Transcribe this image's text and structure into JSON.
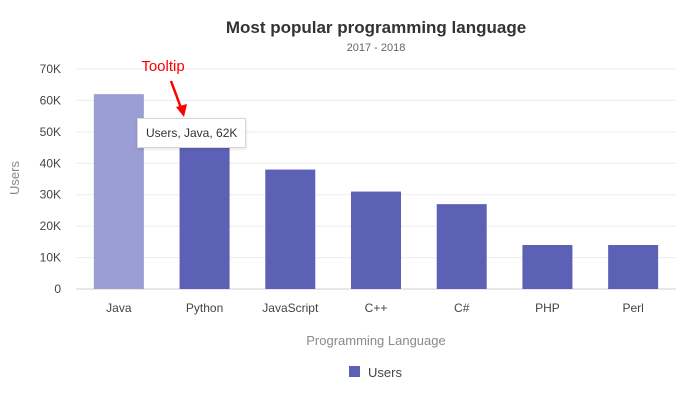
{
  "chart_data": {
    "type": "bar",
    "title": "Most popular programming language",
    "subtitle": "2017 - 2018",
    "xlabel": "Programming Language",
    "ylabel": "Users",
    "categories": [
      "Java",
      "Python",
      "JavaScript",
      "C++",
      "C#",
      "PHP",
      "Perl"
    ],
    "series": [
      {
        "name": "Users",
        "values": [
          62000,
          45000,
          38000,
          31000,
          27000,
          14000,
          14000
        ]
      }
    ],
    "ylim": [
      0,
      70000
    ],
    "yticks": [
      "0",
      "10K",
      "20K",
      "30K",
      "40K",
      "50K",
      "60K",
      "70K"
    ],
    "grid": true,
    "legend": {
      "position": "bottom",
      "entries": [
        "Users"
      ]
    },
    "highlighted_index": 0,
    "colors": {
      "bar": "#5c61b5",
      "bar_highlight": "#9a9ed4",
      "annotation": "#ff0000"
    }
  },
  "tooltip": {
    "text": "Users, Java, 62K"
  },
  "annotation": {
    "text": "Tooltip"
  }
}
